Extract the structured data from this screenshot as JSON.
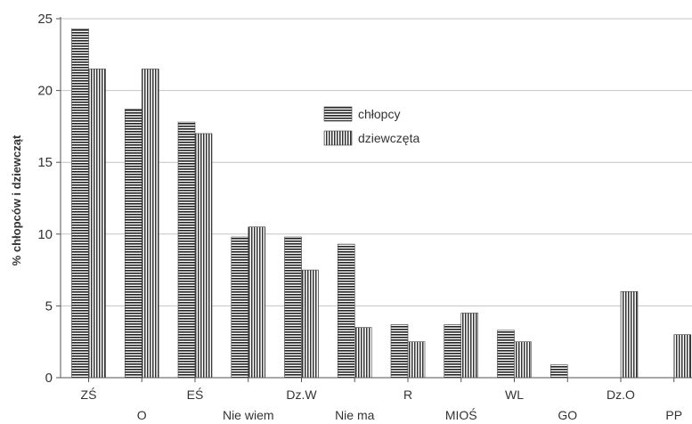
{
  "chart_data": {
    "type": "bar",
    "ylabel": "% chłopców i dziewcząt",
    "ylim": [
      0,
      25
    ],
    "yticks": [
      0,
      5,
      10,
      15,
      20,
      25
    ],
    "grid": "horizontal",
    "legend_position": "top-center",
    "categories": [
      "ZŚ",
      "O",
      "EŚ",
      "Nie wiem",
      "Dz.W",
      "Nie ma",
      "R",
      "MIOŚ",
      "WL",
      "GO",
      "Dz.O",
      "PP"
    ],
    "series": [
      {
        "name": "chłopcy",
        "pattern": "horizontal-stripes",
        "values": [
          24.3,
          18.7,
          17.8,
          9.8,
          9.8,
          9.3,
          3.7,
          3.7,
          3.3,
          0.9,
          0,
          0
        ]
      },
      {
        "name": "dziewczęta",
        "pattern": "vertical-stripes",
        "values": [
          21.5,
          21.5,
          17.0,
          10.5,
          7.5,
          3.5,
          2.5,
          4.5,
          2.5,
          0,
          6.0,
          3.0
        ]
      }
    ]
  }
}
